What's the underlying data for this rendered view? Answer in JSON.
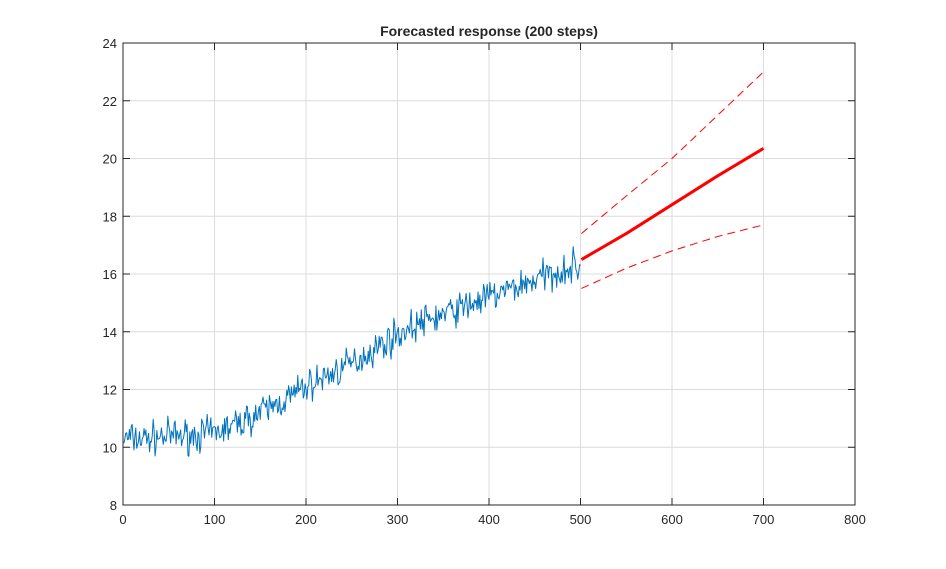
{
  "chart_data": {
    "type": "line",
    "title": "Forecasted response (200 steps)",
    "xlabel": "",
    "ylabel": "",
    "xlim": [
      0,
      800
    ],
    "ylim": [
      8,
      24
    ],
    "xticks": [
      "0",
      "100",
      "200",
      "300",
      "400",
      "500",
      "600",
      "700",
      "800"
    ],
    "yticks": [
      "8",
      "10",
      "12",
      "14",
      "16",
      "18",
      "20",
      "22",
      "24"
    ],
    "grid": true,
    "legend": "none",
    "colors": {
      "observed": "#0072BD",
      "forecast": "#FF0000",
      "bounds": "#FF0000"
    },
    "series": [
      {
        "style": "solid-thin",
        "x": [
          1,
          25,
          50,
          75,
          100,
          125,
          150,
          175,
          200,
          225,
          250,
          275,
          300,
          325,
          350,
          375,
          400,
          425,
          450,
          475,
          500
        ],
        "y": [
          10.3,
          10.3,
          10.4,
          10.4,
          10.5,
          10.8,
          11.2,
          11.6,
          12.1,
          12.5,
          12.9,
          13.4,
          13.9,
          14.3,
          14.6,
          14.9,
          15.2,
          15.5,
          15.8,
          16.1,
          16.3
        ]
      },
      {
        "style": "solid-thick",
        "x": [
          501,
          550,
          600,
          650,
          700
        ],
        "y": [
          16.5,
          17.4,
          18.4,
          19.4,
          20.35
        ]
      },
      {
        "style": "dashed",
        "x": [
          501,
          550,
          600,
          650,
          700
        ],
        "y": [
          17.4,
          18.7,
          20.0,
          21.5,
          23.0
        ]
      },
      {
        "style": "dashed",
        "x": [
          501,
          550,
          600,
          650,
          700
        ],
        "y": [
          15.5,
          16.2,
          16.8,
          17.3,
          17.7
        ]
      }
    ]
  }
}
